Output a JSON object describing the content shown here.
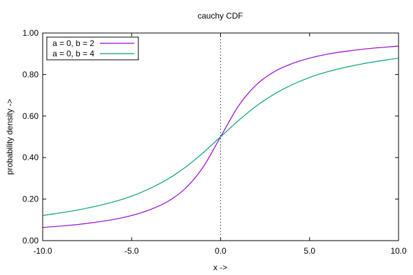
{
  "chart_data": {
    "type": "line",
    "title": "cauchy CDF",
    "xlabel": "x ->",
    "ylabel": "probability density ->",
    "xlim": [
      -10,
      10
    ],
    "ylim": [
      0,
      1
    ],
    "xticks": [
      -10,
      -5,
      0,
      5,
      10
    ],
    "xtick_labels": [
      "-10.0",
      "-5.0",
      "0.0",
      "5.0",
      "10.0"
    ],
    "yticks": [
      0,
      0.2,
      0.4,
      0.6,
      0.8,
      1.0
    ],
    "ytick_labels": [
      "0.00",
      "0.20",
      "0.40",
      "0.60",
      "0.80",
      "1.00"
    ],
    "grid": false,
    "zero_line": "dotted vertical line at x = 0",
    "legend_position": "top-left",
    "series": [
      {
        "name": "a = 0, b = 2",
        "color": "#9400d3",
        "x": [
          -10,
          -8,
          -6,
          -5,
          -4,
          -3,
          -2,
          -1,
          0,
          1,
          2,
          3,
          4,
          5,
          6,
          8,
          10
        ],
        "y": [
          0.063,
          0.078,
          0.102,
          0.121,
          0.148,
          0.187,
          0.25,
          0.352,
          0.5,
          0.648,
          0.75,
          0.813,
          0.852,
          0.879,
          0.898,
          0.922,
          0.937
        ]
      },
      {
        "name": "a = 0, b = 4",
        "color": "#009e73",
        "x": [
          -10,
          -8,
          -6,
          -5,
          -4,
          -3,
          -2,
          -1,
          0,
          1,
          2,
          3,
          4,
          5,
          6,
          8,
          10
        ],
        "y": [
          0.121,
          0.148,
          0.187,
          0.214,
          0.25,
          0.295,
          0.352,
          0.422,
          0.5,
          0.578,
          0.648,
          0.705,
          0.75,
          0.786,
          0.813,
          0.852,
          0.879
        ]
      }
    ]
  }
}
